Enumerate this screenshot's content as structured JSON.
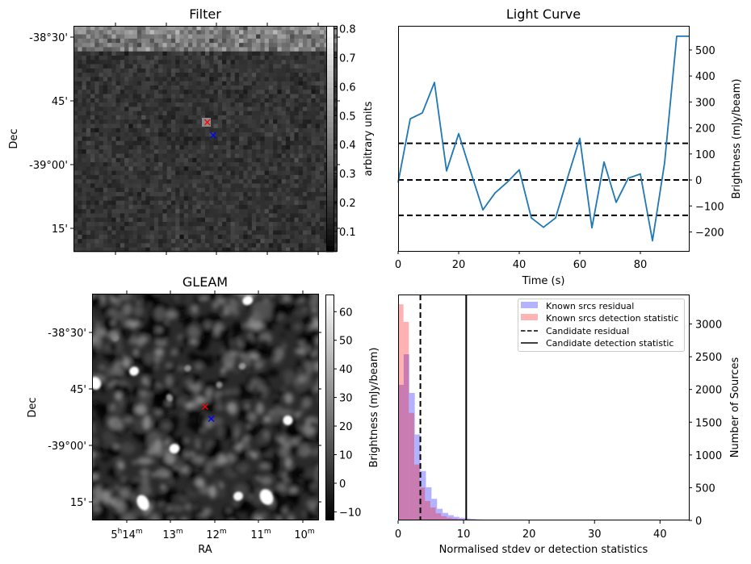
{
  "chart_data": [
    {
      "id": "filter",
      "type": "heatmap",
      "title": "Filter",
      "ylabel": "Dec",
      "xlabel": "",
      "y_tick_labels": [
        "-38°30'",
        "45'",
        "-39°00'",
        "15'"
      ],
      "x_tick_labels": [
        "",
        "",
        "",
        "",
        ""
      ],
      "colorbar": {
        "label": "arbitrary units",
        "range": [
          0.03,
          0.81
        ],
        "tick_labels": [
          "0.1",
          "0.2",
          "0.3",
          "0.4",
          "0.5",
          "0.6",
          "0.7",
          "0.8"
        ],
        "ticks": [
          0.1,
          0.2,
          0.3,
          0.4,
          0.5,
          0.6,
          0.7,
          0.8
        ],
        "colormap": "gray"
      },
      "markers": [
        {
          "name": "candidate-position",
          "symbol": "x",
          "color": "#ff0000"
        },
        {
          "name": "reference-position",
          "symbol": "x",
          "color": "#0000ff"
        }
      ]
    },
    {
      "id": "light-curve",
      "type": "line",
      "title": "Light Curve",
      "xlabel": "Time (s)",
      "ylabel": "Brightness (mJy/beam)",
      "xlim": [
        0,
        96
      ],
      "ylim": [
        -273,
        593
      ],
      "x_ticks": [
        0,
        20,
        40,
        60,
        80
      ],
      "y_ticks": [
        -200,
        -100,
        0,
        100,
        200,
        300,
        400,
        500
      ],
      "x_tick_labels": [
        "0",
        "20",
        "40",
        "60",
        "80"
      ],
      "y_tick_labels": [
        "−200",
        "−100",
        "0",
        "100",
        "200",
        "300",
        "400",
        "500"
      ],
      "yaxis_side": "right",
      "series": [
        {
          "name": "light curve",
          "color": "#1f77b4",
          "x": [
            0,
            4,
            8,
            12,
            16,
            20,
            24,
            28,
            32,
            36,
            40,
            44,
            48,
            52,
            56,
            60,
            64,
            68,
            72,
            76,
            80,
            84,
            88,
            92,
            96
          ],
          "y": [
            -10,
            235,
            258,
            375,
            35,
            178,
            30,
            -115,
            -50,
            -9,
            39,
            -146,
            -182,
            -146,
            10,
            160,
            -184,
            69,
            -86,
            7,
            23,
            -234,
            66,
            553,
            553
          ]
        }
      ],
      "hlines": [
        {
          "name": "upper-threshold",
          "y": 141,
          "style": "dashed",
          "color": "#000000"
        },
        {
          "name": "mean",
          "y": 0,
          "style": "dashed",
          "color": "#000000"
        },
        {
          "name": "lower-threshold",
          "y": -136,
          "style": "dashed",
          "color": "#000000"
        }
      ],
      "grid": false
    },
    {
      "id": "gleam",
      "type": "heatmap",
      "title": "GLEAM",
      "xlabel": "RA",
      "ylabel": "Dec",
      "x_tick_labels": [
        {
          "main": "5",
          "sup1": "h",
          "main2": "14",
          "sup2": "m"
        },
        {
          "main": "13",
          "sup1": "m"
        },
        {
          "main": "12",
          "sup1": "m"
        },
        {
          "main": "11",
          "sup1": "m"
        },
        {
          "main": "10",
          "sup1": "m"
        }
      ],
      "y_tick_labels": [
        "-38°30'",
        "45'",
        "-39°00'",
        "15'"
      ],
      "colorbar": {
        "label": "Brightness (mJy/beam)",
        "range": [
          -13,
          66
        ],
        "ticks": [
          -10,
          0,
          10,
          20,
          30,
          40,
          50,
          60
        ],
        "tick_labels": [
          "−10",
          "0",
          "10",
          "20",
          "30",
          "40",
          "50",
          "60"
        ],
        "colormap": "gray"
      },
      "markers": [
        {
          "name": "candidate-position",
          "symbol": "x",
          "color": "#ff0000"
        },
        {
          "name": "reference-position",
          "symbol": "x",
          "color": "#0000ff"
        }
      ]
    },
    {
      "id": "histogram",
      "type": "bar",
      "title": "",
      "xlabel": "Normalised stdev or detection statistics",
      "ylabel": "Number of Sources",
      "xlim": [
        0,
        44.4
      ],
      "ylim": [
        0,
        3450
      ],
      "x_ticks": [
        0,
        10,
        20,
        30,
        40
      ],
      "y_ticks": [
        0,
        500,
        1000,
        1500,
        2000,
        2500,
        3000
      ],
      "x_tick_labels": [
        "0",
        "10",
        "20",
        "30",
        "40"
      ],
      "y_tick_labels": [
        "0",
        "500",
        "1000",
        "1500",
        "2000",
        "2500",
        "3000"
      ],
      "yaxis_side": "right",
      "series": [
        {
          "name": "Known srcs residual",
          "color": "#0000ff",
          "alpha": 0.3,
          "bin_width": 0.85,
          "bin_start": 0,
          "values": [
            2071,
            2537,
            1947,
            1312,
            755,
            507,
            330,
            177,
            115,
            80,
            55,
            40,
            30,
            22,
            15,
            12,
            9,
            7,
            5,
            4,
            3,
            2,
            2,
            8,
            2,
            2,
            10,
            2,
            2,
            2,
            2,
            3,
            1,
            1,
            1,
            1,
            1,
            1,
            1,
            1,
            1,
            1,
            1,
            1,
            1,
            1,
            1,
            1,
            1,
            1,
            1,
            1
          ]
        },
        {
          "name": "Known srcs detection statistic",
          "color": "#ff0000",
          "alpha": 0.3,
          "bin_width": 0.82,
          "bin_start": 0,
          "values": [
            3300,
            3032,
            1642,
            854,
            503,
            297,
            198,
            108,
            66,
            41,
            30,
            20,
            18,
            16,
            14,
            13,
            10,
            8,
            6,
            6,
            5,
            5,
            6,
            4,
            4,
            5,
            4,
            4,
            4,
            4,
            0,
            0,
            6,
            0,
            0,
            0,
            0,
            0,
            6,
            0,
            0,
            0,
            0,
            0,
            0,
            0,
            0,
            0,
            0,
            0,
            0,
            0,
            0,
            0
          ]
        }
      ],
      "vlines": [
        {
          "name": "Candidate residual",
          "x": 3.4,
          "style": "dashed",
          "color": "#000000"
        },
        {
          "name": "Candidate detection statistic",
          "x": 10.4,
          "style": "solid",
          "color": "#000000"
        }
      ],
      "legend": {
        "placement": "top-right",
        "entries": [
          {
            "label": "Known srcs residual",
            "kind": "patch",
            "color": "#b3b3ff"
          },
          {
            "label": "Known srcs detection statistic",
            "kind": "patch",
            "color": "#ffb3b3"
          },
          {
            "label": "Candidate residual",
            "kind": "dashed-line",
            "color": "#000000"
          },
          {
            "label": "Candidate detection statistic",
            "kind": "solid-line",
            "color": "#000000"
          }
        ]
      },
      "grid": false
    }
  ]
}
